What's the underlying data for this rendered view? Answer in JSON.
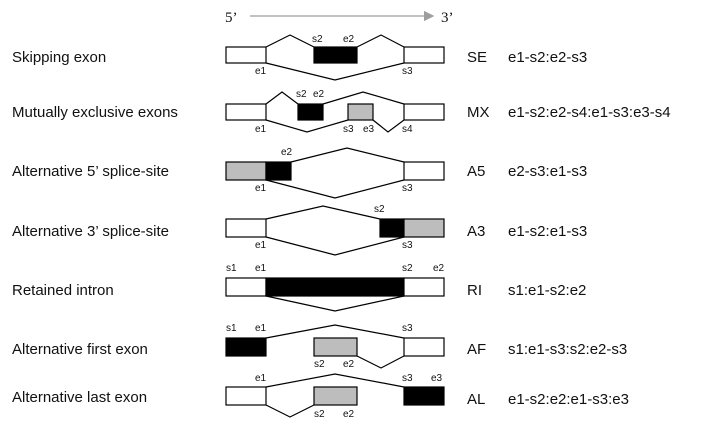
{
  "direction": {
    "left": "5’",
    "right": "3’"
  },
  "colors": {
    "constitutive": "#ffffff",
    "alt_dark": "#000000",
    "alt_gray": "#bdbdbd",
    "arrow": "#9e9e9e"
  },
  "events": [
    {
      "label": "Skipping exon",
      "abbr": "SE",
      "code": "e1-s2:e2-s3",
      "sites": [
        {
          "text": "s2"
        },
        {
          "text": "e2"
        },
        {
          "text": "e1"
        },
        {
          "text": "s3"
        }
      ]
    },
    {
      "label": "Mutually exclusive exons",
      "abbr": "MX",
      "code": "e1-s2:e2-s4:e1-s3:e3-s4",
      "sites": [
        {
          "text": "s2"
        },
        {
          "text": "e2"
        },
        {
          "text": "e1"
        },
        {
          "text": "s3"
        },
        {
          "text": "e3"
        },
        {
          "text": "s4"
        }
      ]
    },
    {
      "label": "Alternative 5’ splice-site",
      "abbr": "A5",
      "code": "e2-s3:e1-s3",
      "sites": [
        {
          "text": "e2"
        },
        {
          "text": "e1"
        },
        {
          "text": "s3"
        }
      ]
    },
    {
      "label": "Alternative 3’ splice-site",
      "abbr": "A3",
      "code": "e1-s2:e1-s3",
      "sites": [
        {
          "text": "s2"
        },
        {
          "text": "e1"
        },
        {
          "text": "s3"
        }
      ]
    },
    {
      "label": "Retained intron",
      "abbr": "RI",
      "code": "s1:e1-s2:e2",
      "sites": [
        {
          "text": "s1"
        },
        {
          "text": "e1"
        },
        {
          "text": "s2"
        },
        {
          "text": "e2"
        }
      ]
    },
    {
      "label": "Alternative first exon",
      "abbr": "AF",
      "code": "s1:e1-s3:s2:e2-s3",
      "sites": [
        {
          "text": "s1"
        },
        {
          "text": "e1"
        },
        {
          "text": "s3"
        },
        {
          "text": "s2"
        },
        {
          "text": "e2"
        }
      ]
    },
    {
      "label": "Alternative last exon",
      "abbr": "AL",
      "code": "e1-s2:e2:e1-s3:e3",
      "sites": [
        {
          "text": "e1"
        },
        {
          "text": "s3"
        },
        {
          "text": "e3"
        },
        {
          "text": "s2"
        },
        {
          "text": "e2"
        }
      ]
    }
  ]
}
